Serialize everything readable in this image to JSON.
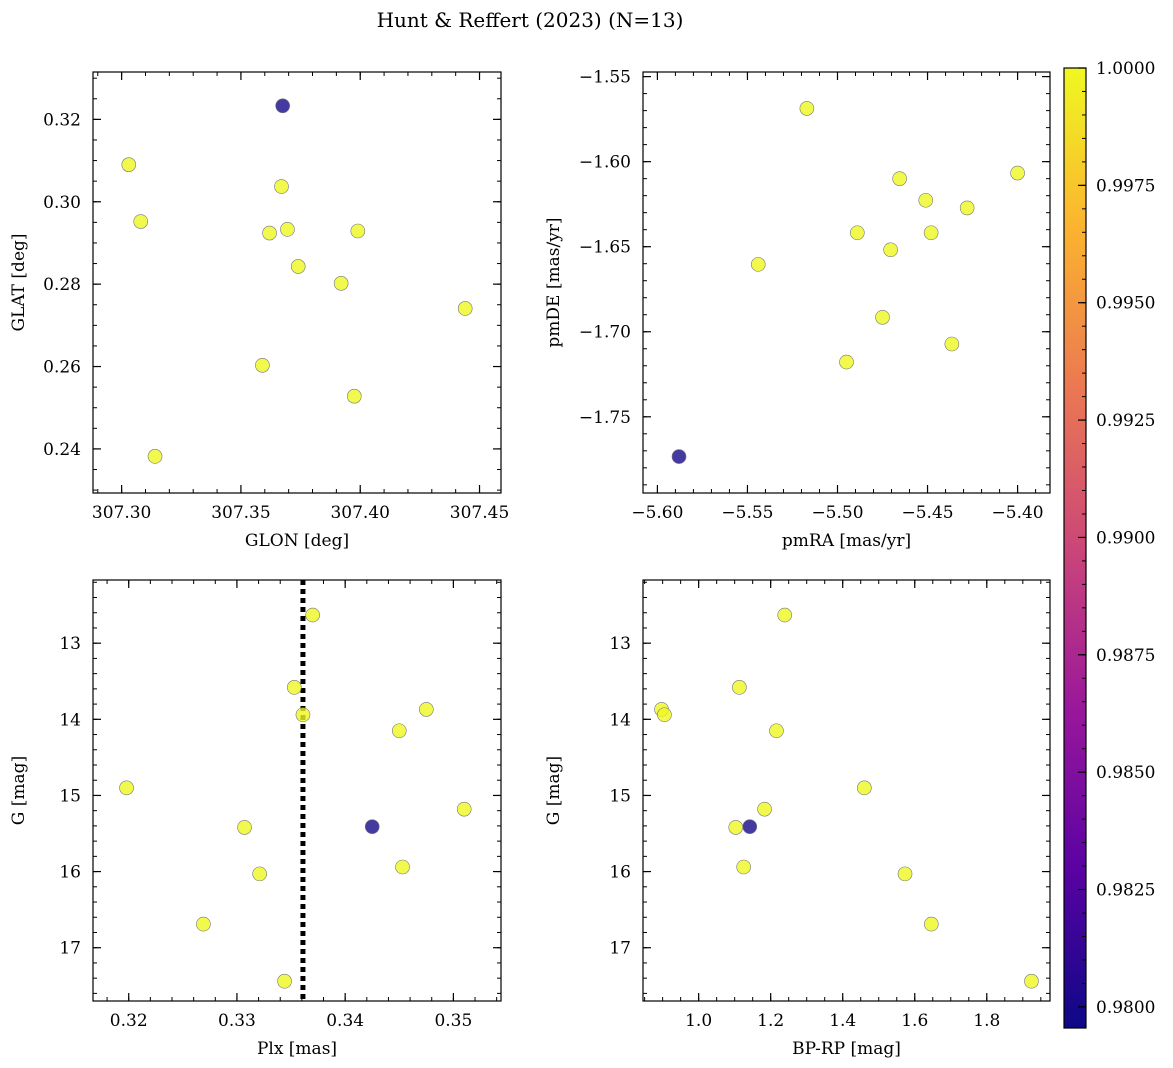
{
  "figure": {
    "title": "Hunt & Reffert (2023) (N=13)"
  },
  "colorbar": {
    "colormap": "plasma",
    "range": [
      0.97955,
      1.0
    ],
    "ticks": [
      0.98,
      0.9825,
      0.985,
      0.9875,
      0.99,
      0.9925,
      0.995,
      0.9975,
      1.0
    ],
    "tick_labels": [
      "0.9800",
      "0.9825",
      "0.9850",
      "0.9875",
      "0.9900",
      "0.9925",
      "0.9950",
      "0.9975",
      "1.0000"
    ],
    "colors": [
      "#0d0887",
      "#5b02a3",
      "#9a179b",
      "#cb4678",
      "#eb7852",
      "#fbb32f",
      "#eff821"
    ]
  },
  "chart_data": [
    {
      "type": "scatter",
      "title": "",
      "xlabel": "GLON [deg]",
      "ylabel": "GLAT [deg]",
      "xlim": [
        307.288,
        307.459
      ],
      "ylim": [
        0.2293,
        0.3315
      ],
      "y_inverted": false,
      "xticks": [
        307.3,
        307.35,
        307.4,
        307.45
      ],
      "xtick_labels": [
        "307.30",
        "307.35",
        "307.40",
        "307.45"
      ],
      "yticks": [
        0.24,
        0.26,
        0.28,
        0.3,
        0.32
      ],
      "ytick_labels": [
        "0.24",
        "0.26",
        "0.28",
        "0.30",
        "0.32"
      ],
      "xminor": 0.01,
      "yminor": 0.005,
      "vline": null,
      "x": [
        307.303,
        307.308,
        307.314,
        307.359,
        307.362,
        307.367,
        307.3675,
        307.3695,
        307.374,
        307.392,
        307.3975,
        307.399,
        307.444
      ],
      "y": [
        0.309,
        0.2952,
        0.2382,
        0.2603,
        0.2924,
        0.3037,
        0.3233,
        0.2933,
        0.2843,
        0.2802,
        0.2528,
        0.2929,
        0.2741
      ],
      "c": [
        1,
        1,
        1,
        1,
        1,
        1,
        0.98,
        1,
        1,
        1,
        1,
        1,
        1
      ]
    },
    {
      "type": "scatter",
      "title": "",
      "xlabel": "pmRA [mas/yr]",
      "ylabel": "pmDE [mas/yr]",
      "xlim": [
        -5.608,
        -5.382
      ],
      "ylim": [
        -1.7948,
        -1.5473
      ],
      "y_inverted": false,
      "xticks": [
        -5.6,
        -5.55,
        -5.5,
        -5.45,
        -5.4
      ],
      "xtick_labels": [
        "−5.60",
        "−5.55",
        "−5.50",
        "−5.45",
        "−5.40"
      ],
      "yticks": [
        -1.75,
        -1.7,
        -1.65,
        -1.6,
        -1.55
      ],
      "ytick_labels": [
        "−1.75",
        "−1.70",
        "−1.65",
        "−1.60",
        "−1.55"
      ],
      "xminor": 0.01,
      "yminor": 0.01,
      "vline": null,
      "x": [
        -5.588,
        -5.544,
        -5.517,
        -5.495,
        -5.489,
        -5.475,
        -5.4705,
        -5.4655,
        -5.451,
        -5.448,
        -5.4365,
        -5.428,
        -5.4
      ],
      "y": [
        -1.7734,
        -1.6604,
        -1.5687,
        -1.7178,
        -1.6418,
        -1.6915,
        -1.6518,
        -1.61,
        -1.6227,
        -1.6418,
        -1.7072,
        -1.6272,
        -1.6067
      ],
      "c": [
        0.98,
        1,
        1,
        1,
        1,
        1,
        1,
        1,
        1,
        1,
        1,
        1,
        1
      ]
    },
    {
      "type": "scatter",
      "title": "",
      "xlabel": "Plx [mas]",
      "ylabel": "G [mag]",
      "xlim": [
        0.3167,
        0.3544
      ],
      "ylim": [
        17.7,
        12.17
      ],
      "y_inverted": true,
      "xticks": [
        0.32,
        0.33,
        0.34,
        0.35
      ],
      "xtick_labels": [
        "0.32",
        "0.33",
        "0.34",
        "0.35"
      ],
      "yticks": [
        13,
        14,
        15,
        16,
        17
      ],
      "ytick_labels": [
        "13",
        "14",
        "15",
        "16",
        "17"
      ],
      "xminor": 0.002,
      "yminor": 0.2,
      "vline": 0.3361,
      "x": [
        0.3198,
        0.3269,
        0.3307,
        0.3321,
        0.3344,
        0.3353,
        0.3361,
        0.337,
        0.3425,
        0.345,
        0.3453,
        0.3475,
        0.351
      ],
      "y": [
        14.9,
        16.69,
        15.42,
        16.03,
        17.44,
        13.58,
        13.94,
        12.63,
        15.41,
        14.15,
        15.94,
        13.87,
        15.18
      ],
      "c": [
        1,
        1,
        1,
        1,
        1,
        1,
        1,
        1,
        0.98,
        1,
        1,
        1,
        1
      ]
    },
    {
      "type": "scatter",
      "title": "",
      "xlabel": "BP-RP [mag]",
      "ylabel": "G [mag]",
      "xlim": [
        0.8455,
        1.9755
      ],
      "ylim": [
        17.7,
        12.17
      ],
      "y_inverted": true,
      "xticks": [
        1.0,
        1.2,
        1.4,
        1.6,
        1.8
      ],
      "xtick_labels": [
        "1.0",
        "1.2",
        "1.4",
        "1.6",
        "1.8"
      ],
      "yticks": [
        13,
        14,
        15,
        16,
        17
      ],
      "ytick_labels": [
        "13",
        "14",
        "15",
        "16",
        "17"
      ],
      "xminor": 0.05,
      "yminor": 0.2,
      "vline": null,
      "x": [
        0.897,
        0.905,
        1.103,
        1.113,
        1.125,
        1.142,
        1.183,
        1.216,
        1.239,
        1.46,
        1.573,
        1.646,
        1.924
      ],
      "y": [
        13.87,
        13.94,
        15.42,
        13.58,
        15.94,
        15.41,
        15.18,
        14.15,
        12.63,
        14.9,
        16.03,
        16.69,
        17.44
      ],
      "c": [
        1,
        1,
        1,
        1,
        1,
        0.98,
        1,
        1,
        1,
        1,
        1,
        1,
        1
      ]
    }
  ]
}
